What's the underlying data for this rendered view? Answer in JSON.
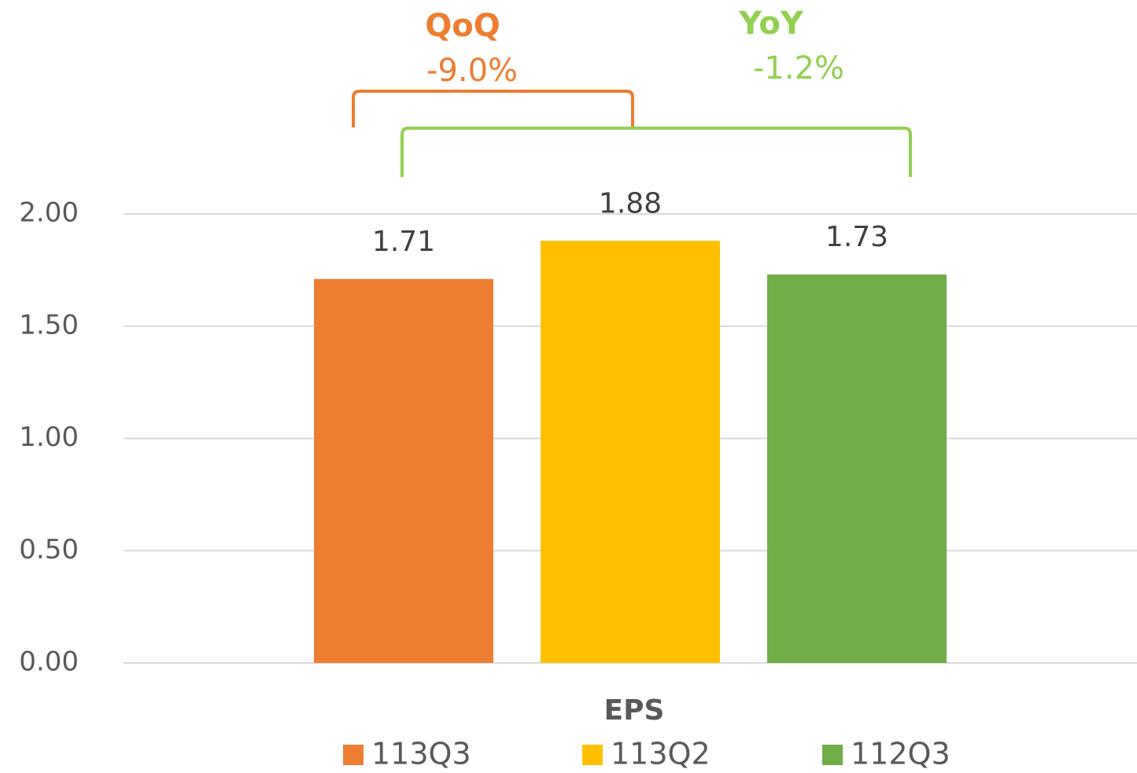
{
  "chart_data": {
    "type": "bar",
    "categories": [
      "EPS"
    ],
    "series": [
      {
        "name": "113Q3",
        "color": "#ED7D31",
        "values": [
          1.71
        ]
      },
      {
        "name": "113Q2",
        "color": "#FFC000",
        "values": [
          1.88
        ]
      },
      {
        "name": "112Q3",
        "color": "#70AD47",
        "values": [
          1.73
        ]
      }
    ],
    "ylim": [
      0,
      2
    ],
    "yticks": [
      {
        "value": 0,
        "label": "0.00"
      },
      {
        "value": 0.5,
        "label": "0.50"
      },
      {
        "value": 1,
        "label": "1.00"
      },
      {
        "value": 1.5,
        "label": "1.50"
      },
      {
        "value": 2,
        "label": "2.00"
      }
    ],
    "grid": true,
    "legend": "bottom",
    "annotations": [
      {
        "title": "QoQ",
        "text": "-9.0%",
        "color": "#ED7D31"
      },
      {
        "title": "YoY",
        "text": "-1.2%",
        "color": "#92D050"
      }
    ]
  }
}
